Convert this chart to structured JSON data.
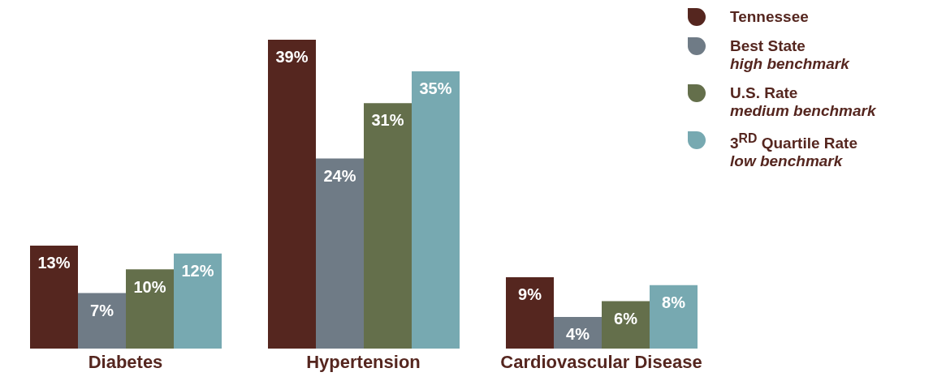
{
  "chart_data": {
    "type": "bar",
    "categories": [
      "Diabetes",
      "Hypertension",
      "Cardiovascular Disease"
    ],
    "series": [
      {
        "name": "Tennessee",
        "color": "#55261f",
        "values": [
          13,
          39,
          9
        ],
        "value_labels": [
          "13%",
          "39%",
          "9%"
        ]
      },
      {
        "name": "Best State\nhigh benchmark",
        "color": "#6f7b86",
        "values": [
          7,
          24,
          4
        ],
        "value_labels": [
          "7%",
          "24%",
          "4%"
        ]
      },
      {
        "name": "U.S. Rate\nmedium benchmark",
        "color": "#646f4b",
        "values": [
          10,
          31,
          6
        ],
        "value_labels": [
          "10%",
          "31%",
          "6%"
        ]
      },
      {
        "name": "3$^{RD}$ Quartile Rate\nlow benchmark",
        "color": "#77a9b1",
        "values": [
          12,
          35,
          8
        ],
        "value_labels": [
          "12%",
          "35%",
          "8%"
        ]
      }
    ],
    "legend": "top right"
  }
}
